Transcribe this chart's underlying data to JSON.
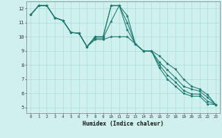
{
  "xlabel": "Humidex (Indice chaleur)",
  "ylabel": "",
  "bg_color": "#cff0ec",
  "line_color": "#1e7a70",
  "grid_color": "#a8ddd8",
  "xlim": [
    -0.5,
    23.5
  ],
  "ylim": [
    4.6,
    12.5
  ],
  "xticks": [
    0,
    1,
    2,
    3,
    4,
    5,
    6,
    7,
    8,
    9,
    10,
    11,
    12,
    13,
    14,
    15,
    16,
    17,
    18,
    19,
    20,
    21,
    22,
    23
  ],
  "yticks": [
    5,
    6,
    7,
    8,
    9,
    10,
    11,
    12
  ],
  "series": [
    [
      11.55,
      12.2,
      12.2,
      11.35,
      11.15,
      10.3,
      10.25,
      9.3,
      10.0,
      10.0,
      12.2,
      12.2,
      11.5,
      9.5,
      9.0,
      9.0,
      8.65,
      8.1,
      7.7,
      7.0,
      6.5,
      6.3,
      5.9,
      5.2
    ],
    [
      11.55,
      12.2,
      12.2,
      11.35,
      11.15,
      10.3,
      10.25,
      9.3,
      10.0,
      10.0,
      12.2,
      12.2,
      11.0,
      9.5,
      9.0,
      9.0,
      8.2,
      7.65,
      7.1,
      6.5,
      6.3,
      6.15,
      5.7,
      5.2
    ],
    [
      11.55,
      12.2,
      12.2,
      11.35,
      11.15,
      10.3,
      10.25,
      9.3,
      9.9,
      9.9,
      11.1,
      12.2,
      10.5,
      9.5,
      9.0,
      9.0,
      8.0,
      7.3,
      6.8,
      6.2,
      5.95,
      5.95,
      5.45,
      5.2
    ],
    [
      11.55,
      12.2,
      12.2,
      11.35,
      11.15,
      10.3,
      10.25,
      9.3,
      9.8,
      9.8,
      10.0,
      10.0,
      10.0,
      9.5,
      9.0,
      9.0,
      7.8,
      7.0,
      6.5,
      6.0,
      5.8,
      5.8,
      5.25,
      5.2
    ]
  ]
}
